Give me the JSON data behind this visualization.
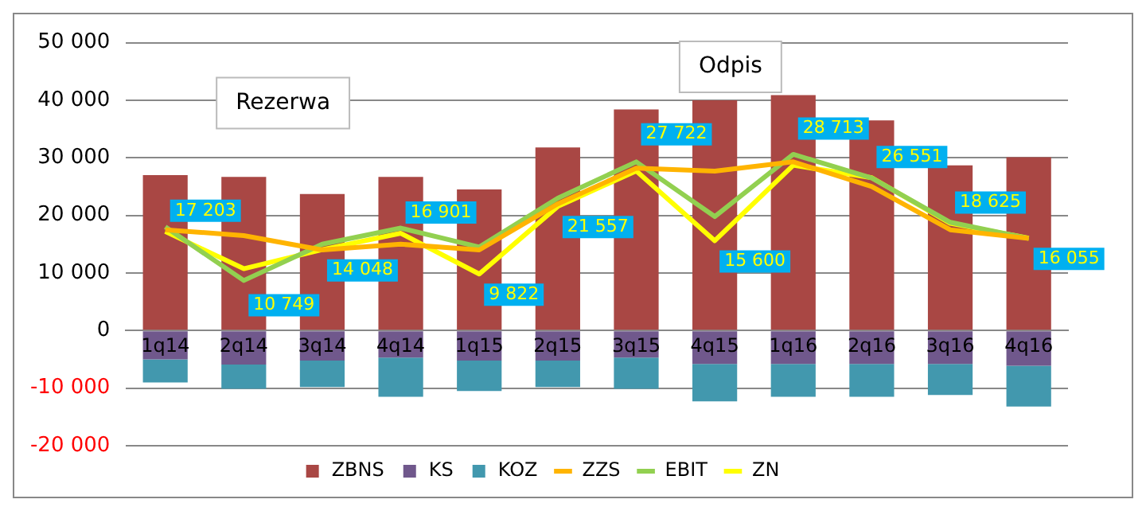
{
  "chart_data": {
    "type": "bar",
    "stacked": true,
    "categories": [
      "1q14",
      "2q14",
      "3q14",
      "4q14",
      "1q15",
      "2q15",
      "3q15",
      "4q15",
      "1q16",
      "2q16",
      "3q16",
      "4q16"
    ],
    "series": [
      {
        "name": "ZBNS",
        "color": "#a94744",
        "values": [
          27000,
          26700,
          23700,
          26700,
          24500,
          31800,
          38400,
          40000,
          40900,
          36500,
          28700,
          30100
        ]
      },
      {
        "name": "KS",
        "color": "#70588c",
        "values": [
          -5000,
          -5900,
          -5200,
          -4700,
          -5200,
          -5200,
          -4700,
          -5800,
          -5800,
          -5800,
          -5800,
          -6100
        ]
      },
      {
        "name": "KOZ",
        "color": "#4298ae",
        "values": [
          -4000,
          -4200,
          -4600,
          -6800,
          -5300,
          -4600,
          -5400,
          -6500,
          -5700,
          -5700,
          -5400,
          -7100
        ]
      },
      {
        "name": "ZZS",
        "type": "line",
        "color": "#ffb400",
        "values": [
          17500,
          16500,
          14000,
          15000,
          14000,
          22000,
          28200,
          27700,
          29300,
          25000,
          17500,
          16000
        ]
      },
      {
        "name": "EBIT",
        "type": "line",
        "color": "#92d050",
        "values": [
          18000,
          8700,
          15000,
          17800,
          14500,
          23000,
          29300,
          19800,
          30600,
          26500,
          18800,
          16000
        ]
      },
      {
        "name": "ZN",
        "type": "line",
        "color": "#ffff00",
        "values": [
          17203,
          10749,
          14048,
          16901,
          9822,
          21557,
          27722,
          15600,
          28713,
          26551,
          18625,
          16055
        ],
        "data_labels": true
      }
    ],
    "ylim": [
      -20000,
      50000
    ],
    "yticks": [
      {
        "value": -20000,
        "label": "-20 000"
      },
      {
        "value": -10000,
        "label": "-10 000"
      },
      {
        "value": 0,
        "label": "0"
      },
      {
        "value": 10000,
        "label": "10 000"
      },
      {
        "value": 20000,
        "label": "20 000"
      },
      {
        "value": 30000,
        "label": "30 000"
      },
      {
        "value": 40000,
        "label": "40 000"
      },
      {
        "value": 50000,
        "label": "50 000"
      }
    ],
    "grid": "y",
    "legend": "bottom",
    "annotations": [
      "Rezerwa",
      "Odpis"
    ]
  }
}
